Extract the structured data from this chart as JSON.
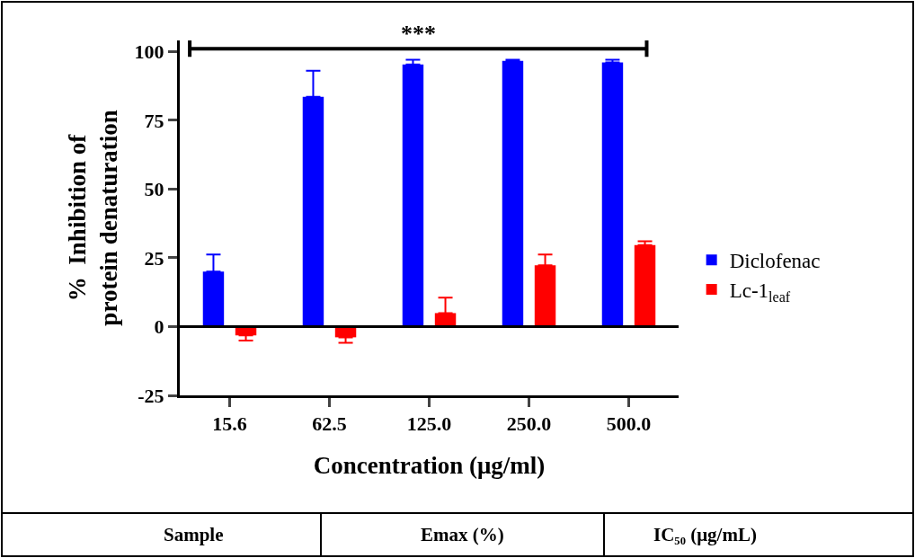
{
  "chart_data": {
    "type": "bar",
    "xlabel": "Concentration (μg/ml)",
    "ylabel": "%  Inhibition of\nprotein denaturation",
    "categories": [
      "15.6",
      "62.5",
      "125.0",
      "250.0",
      "500.0"
    ],
    "series": [
      {
        "name": "Diclofenac",
        "color": "#0000ff",
        "values": [
          20.0,
          83.5,
          95.3,
          96.6,
          96.0
        ],
        "errors": [
          [
            20.0,
            26.2
          ],
          [
            83.5,
            93.0
          ],
          [
            95.3,
            97.0
          ],
          [
            96.6,
            97.0
          ],
          [
            96.0,
            97.0
          ]
        ]
      },
      {
        "name": "Lc-1$_{leaf}$",
        "color": "#ff0000",
        "values": [
          -3.2,
          -3.9,
          4.9,
          22.3,
          29.6
        ],
        "errors": [
          [
            -5.1,
            -3.2
          ],
          [
            -5.9,
            -3.9
          ],
          [
            4.9,
            10.5
          ],
          [
            22.3,
            26.2
          ],
          [
            29.6,
            31.0
          ]
        ]
      }
    ],
    "ylim": [
      -25,
      104
    ],
    "yticks": [
      -25,
      0,
      25,
      50,
      75,
      100
    ],
    "legend": "right",
    "ref_lines": [
      {
        "axis": "y",
        "value": 0,
        "color": "#000000"
      },
      {
        "axis": "y",
        "value": 101,
        "label": "***",
        "color": "#000000"
      }
    ],
    "annotations": [
      "Sample",
      "Emax (%)",
      "IC₅₀ (μg/mL)"
    ]
  }
}
